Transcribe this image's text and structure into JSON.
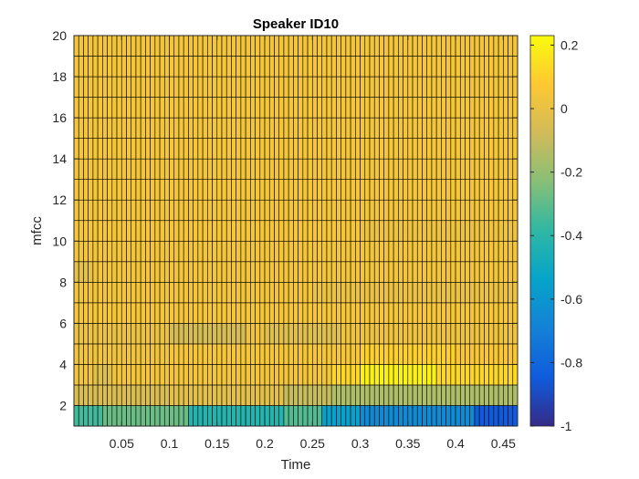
{
  "chart_data": {
    "type": "heatmap",
    "title": "Speaker ID10",
    "xlabel": "Time",
    "ylabel": "mfcc",
    "xlim": [
      0.0,
      0.465
    ],
    "ylim": [
      1,
      20
    ],
    "xticks": [
      0.05,
      0.1,
      0.15,
      0.2,
      0.25,
      0.3,
      0.35,
      0.4,
      0.45
    ],
    "xtick_labels": [
      "0.05",
      "0.1",
      "0.15",
      "0.2",
      "0.25",
      "0.3",
      "0.35",
      "0.4",
      "0.45"
    ],
    "yticks": [
      2,
      4,
      6,
      8,
      10,
      12,
      14,
      16,
      18,
      20
    ],
    "ytick_labels": [
      "2",
      "4",
      "6",
      "8",
      "10",
      "12",
      "14",
      "16",
      "18",
      "20"
    ],
    "n_frames": 93,
    "frame_step": 0.005,
    "n_coefficients": 19,
    "edge_color": "#000000",
    "colorbar": {
      "limits": [
        -1,
        0.23
      ],
      "ticks": [
        0.2,
        0,
        -0.2,
        -0.4,
        -0.6,
        -0.8,
        -1
      ],
      "tick_labels": [
        "0.2",
        "0",
        "-0.2",
        "-0.4",
        "-0.6",
        "-0.8",
        "-1"
      ],
      "colormap": "parula"
    },
    "rows": [
      {
        "mfcc": 1,
        "segments": [
          {
            "t": [
              0.0,
              0.03
            ],
            "value": -0.35
          },
          {
            "t": [
              0.03,
              0.12
            ],
            "value": -0.28
          },
          {
            "t": [
              0.12,
              0.22
            ],
            "value": -0.42
          },
          {
            "t": [
              0.22,
              0.26
            ],
            "value": -0.32
          },
          {
            "t": [
              0.26,
              0.3
            ],
            "value": -0.55
          },
          {
            "t": [
              0.3,
              0.42
            ],
            "value": -0.65
          },
          {
            "t": [
              0.42,
              0.465
            ],
            "value": -0.85
          }
        ]
      },
      {
        "mfcc": 2,
        "segments": [
          {
            "t": [
              0.0,
              0.1
            ],
            "value": -0.05
          },
          {
            "t": [
              0.1,
              0.22
            ],
            "value": -0.02
          },
          {
            "t": [
              0.22,
              0.27
            ],
            "value": -0.1
          },
          {
            "t": [
              0.27,
              0.465
            ],
            "value": -0.15
          }
        ]
      },
      {
        "mfcc": 3,
        "segments": [
          {
            "t": [
              0.0,
              0.02
            ],
            "value": 0.03
          },
          {
            "t": [
              0.02,
              0.04
            ],
            "value": -0.03
          },
          {
            "t": [
              0.04,
              0.27
            ],
            "value": 0.04
          },
          {
            "t": [
              0.27,
              0.3
            ],
            "value": 0.12
          },
          {
            "t": [
              0.3,
              0.38
            ],
            "value": 0.2
          },
          {
            "t": [
              0.38,
              0.465
            ],
            "value": 0.12
          }
        ]
      },
      {
        "mfcc": 4,
        "segments": [
          {
            "t": [
              0.0,
              0.1
            ],
            "value": 0.03
          },
          {
            "t": [
              0.1,
              0.3
            ],
            "value": 0.05
          },
          {
            "t": [
              0.3,
              0.4
            ],
            "value": 0.1
          },
          {
            "t": [
              0.4,
              0.465
            ],
            "value": 0.06
          }
        ]
      },
      {
        "mfcc": 5,
        "segments": [
          {
            "t": [
              0.0,
              0.1
            ],
            "value": 0.01
          },
          {
            "t": [
              0.1,
              0.18
            ],
            "value": -0.06
          },
          {
            "t": [
              0.18,
              0.2
            ],
            "value": 0.02
          },
          {
            "t": [
              0.2,
              0.28
            ],
            "value": -0.03
          },
          {
            "t": [
              0.28,
              0.465
            ],
            "value": 0.02
          }
        ]
      },
      {
        "mfcc": 6,
        "segments": [
          {
            "t": [
              0.0,
              0.465
            ],
            "value": 0.05
          }
        ]
      },
      {
        "mfcc": 7,
        "segments": [
          {
            "t": [
              0.0,
              0.25
            ],
            "value": 0.04
          },
          {
            "t": [
              0.25,
              0.465
            ],
            "value": 0.01
          }
        ]
      },
      {
        "mfcc": 8,
        "segments": [
          {
            "t": [
              0.0,
              0.02
            ],
            "value": -0.02
          },
          {
            "t": [
              0.02,
              0.465
            ],
            "value": 0.04
          }
        ]
      },
      {
        "mfcc": 9,
        "segments": [
          {
            "t": [
              0.0,
              0.465
            ],
            "value": 0.04
          }
        ]
      },
      {
        "mfcc": 10,
        "segments": [
          {
            "t": [
              0.0,
              0.3
            ],
            "value": 0.05
          },
          {
            "t": [
              0.3,
              0.465
            ],
            "value": 0.02
          }
        ]
      },
      {
        "mfcc": 11,
        "segments": [
          {
            "t": [
              0.0,
              0.465
            ],
            "value": 0.04
          }
        ]
      },
      {
        "mfcc": 12,
        "segments": [
          {
            "t": [
              0.0,
              0.465
            ],
            "value": 0.05
          }
        ]
      },
      {
        "mfcc": 13,
        "segments": [
          {
            "t": [
              0.0,
              0.465
            ],
            "value": 0.04
          }
        ]
      },
      {
        "mfcc": 14,
        "segments": [
          {
            "t": [
              0.0,
              0.465
            ],
            "value": 0.05
          }
        ]
      },
      {
        "mfcc": 15,
        "segments": [
          {
            "t": [
              0.0,
              0.465
            ],
            "value": 0.04
          }
        ]
      },
      {
        "mfcc": 16,
        "segments": [
          {
            "t": [
              0.0,
              0.465
            ],
            "value": 0.05
          }
        ]
      },
      {
        "mfcc": 17,
        "segments": [
          {
            "t": [
              0.0,
              0.465
            ],
            "value": 0.04
          }
        ]
      },
      {
        "mfcc": 18,
        "segments": [
          {
            "t": [
              0.0,
              0.465
            ],
            "value": 0.05
          }
        ]
      },
      {
        "mfcc": 19,
        "segments": [
          {
            "t": [
              0.0,
              0.465
            ],
            "value": 0.04
          }
        ]
      }
    ]
  }
}
